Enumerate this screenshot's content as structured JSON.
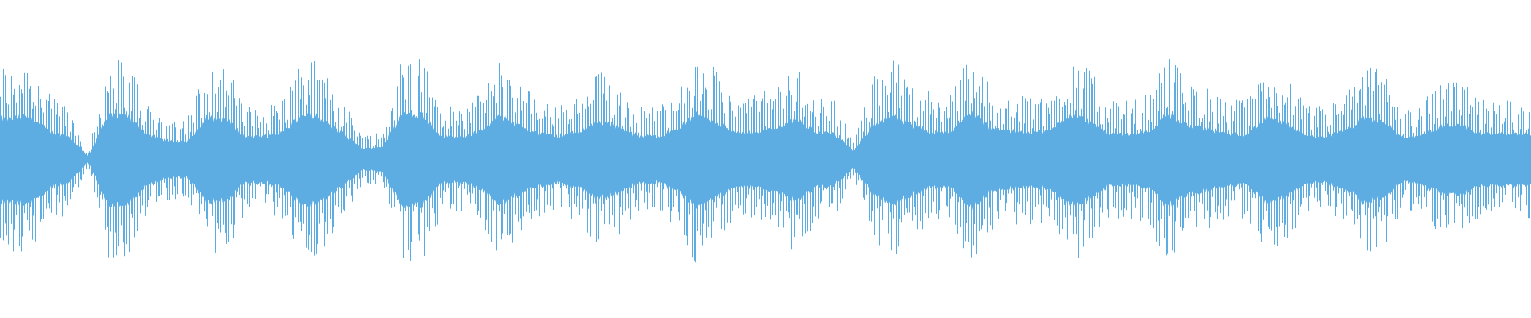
{
  "chart_data": {
    "type": "area",
    "title": "",
    "xlabel": "",
    "ylabel": "",
    "grid": false,
    "ylim": [
      -1,
      1
    ],
    "color": "#5DADE2",
    "background": "#ffffff",
    "envelope_peak_amplitude": [
      0.8,
      0.85,
      0.55,
      0.45,
      0.05,
      0.85,
      0.85,
      0.5,
      0.35,
      0.35,
      0.8,
      0.8,
      0.45,
      0.45,
      0.55,
      0.9,
      0.75,
      0.5,
      0.2,
      0.25,
      0.9,
      0.9,
      0.45,
      0.45,
      0.55,
      0.85,
      0.65,
      0.5,
      0.45,
      0.55,
      0.75,
      0.65,
      0.45,
      0.45,
      0.6,
      0.9,
      0.75,
      0.5,
      0.55,
      0.6,
      0.8,
      0.55,
      0.5,
      0.15,
      0.7,
      0.85,
      0.65,
      0.55,
      0.55,
      0.95,
      0.6,
      0.55,
      0.55,
      0.55,
      0.9,
      0.75,
      0.5,
      0.5,
      0.55,
      0.9,
      0.65,
      0.6,
      0.5,
      0.5,
      0.8,
      0.7,
      0.45,
      0.45,
      0.55,
      0.8,
      0.75,
      0.4,
      0.5,
      0.65,
      0.65,
      0.5,
      0.5,
      0.5
    ]
  }
}
